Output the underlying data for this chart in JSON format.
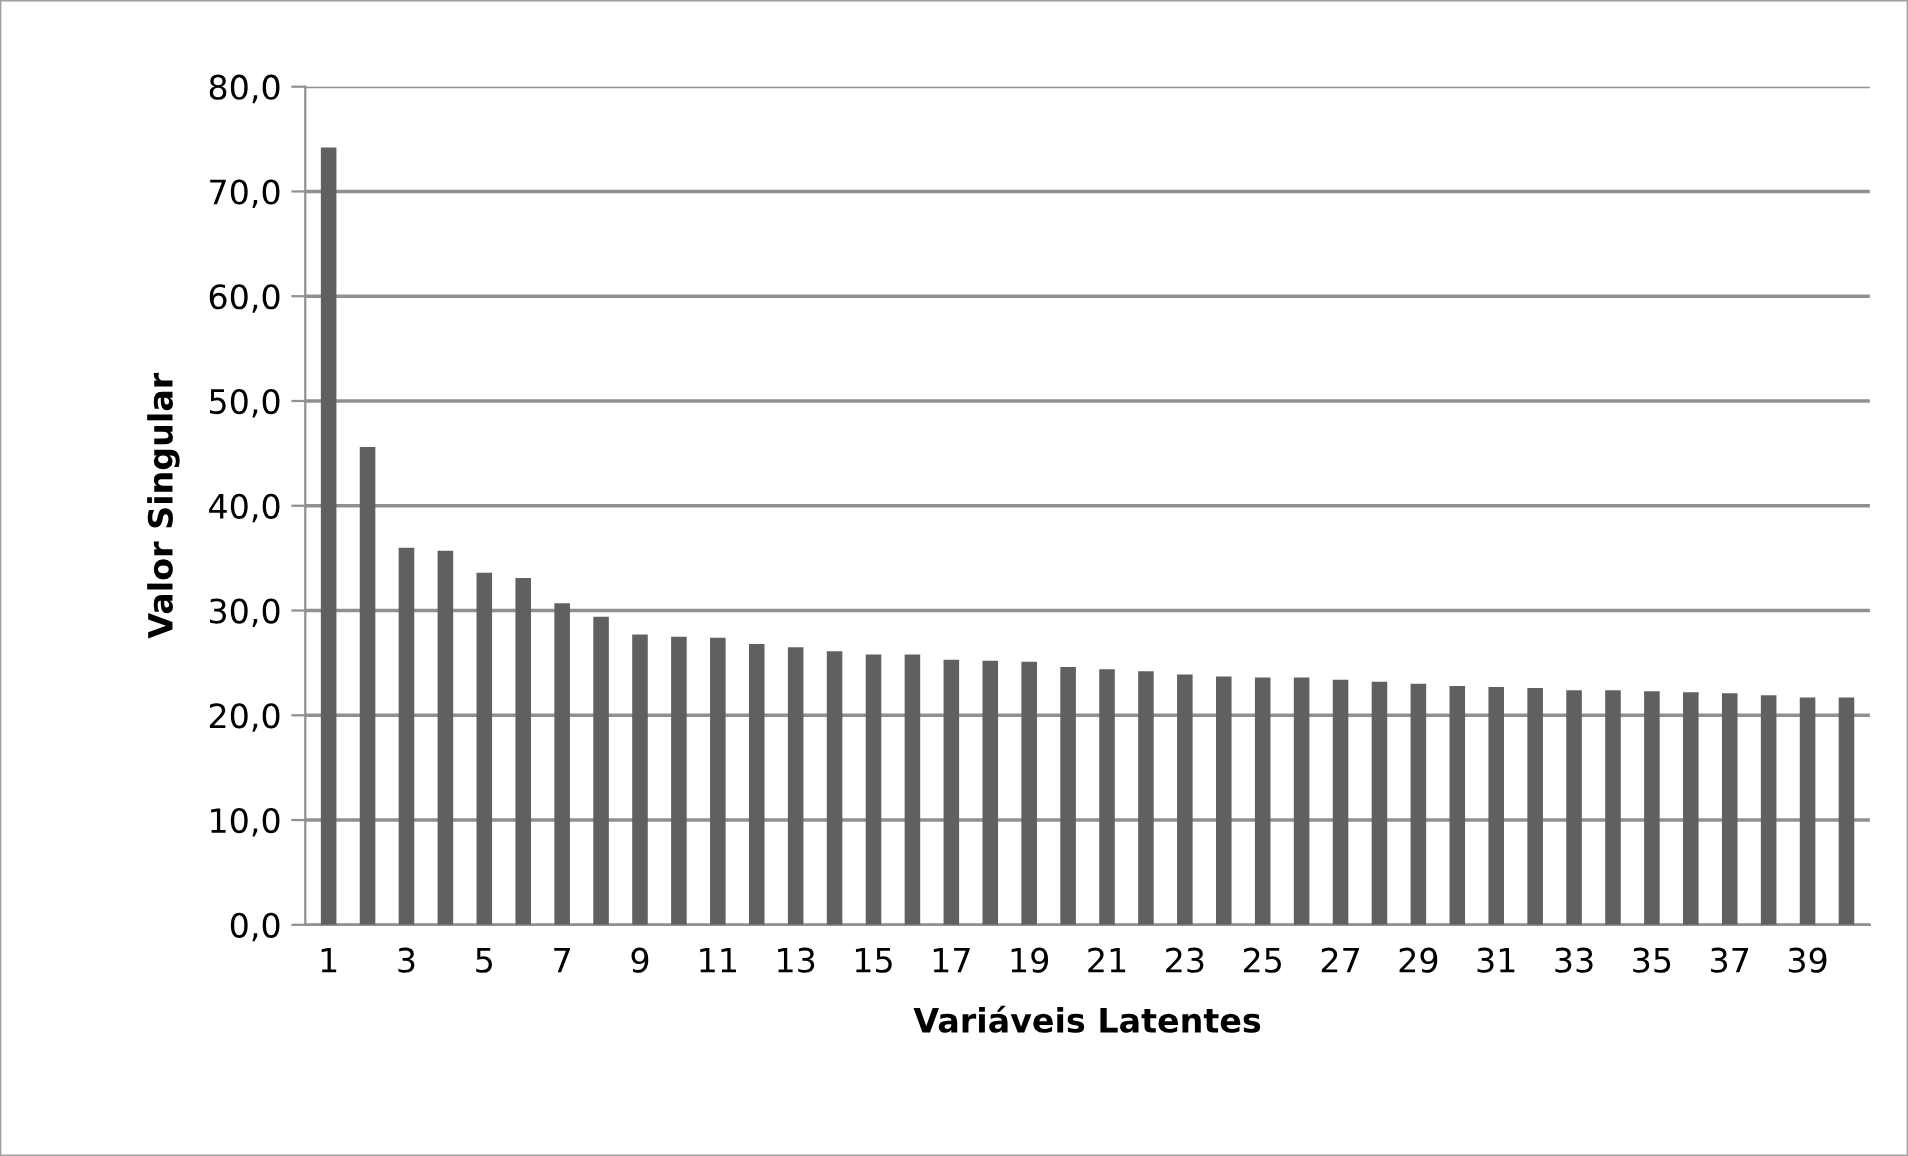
{
  "chart_data": {
    "type": "bar",
    "xlabel": "Variáveis Latentes",
    "ylabel": "Valor Singular",
    "categories": [
      "1",
      null,
      "3",
      null,
      "5",
      null,
      "7",
      null,
      "9",
      null,
      "11",
      null,
      "13",
      null,
      "15",
      null,
      "17",
      null,
      "19",
      null,
      "21",
      null,
      "23",
      null,
      "25",
      null,
      "27",
      null,
      "29",
      null,
      "31",
      null,
      "33",
      null,
      "35",
      null,
      "37",
      null,
      "39",
      null
    ],
    "values": [
      74.2,
      45.6,
      36.0,
      35.7,
      33.6,
      33.1,
      30.7,
      29.4,
      27.7,
      27.5,
      27.4,
      26.8,
      26.5,
      26.1,
      25.8,
      25.8,
      25.3,
      25.2,
      25.1,
      24.6,
      24.4,
      24.2,
      23.9,
      23.7,
      23.6,
      23.6,
      23.4,
      23.2,
      23.0,
      22.8,
      22.7,
      22.6,
      22.4,
      22.4,
      22.3,
      22.2,
      22.1,
      21.9,
      21.7,
      21.7
    ],
    "color": "#606060",
    "ylim": [
      0,
      80
    ],
    "yticks": [
      {
        "value": 0,
        "label": "0,0"
      },
      {
        "value": 10,
        "label": "10,0"
      },
      {
        "value": 20,
        "label": "20,0"
      },
      {
        "value": 30,
        "label": "30,0"
      },
      {
        "value": 40,
        "label": "40,0"
      },
      {
        "value": 50,
        "label": "50,0"
      },
      {
        "value": 60,
        "label": "60,0"
      },
      {
        "value": 70,
        "label": "70,0"
      },
      {
        "value": 80,
        "label": "80,0"
      }
    ],
    "grid": "y",
    "legend": false
  }
}
